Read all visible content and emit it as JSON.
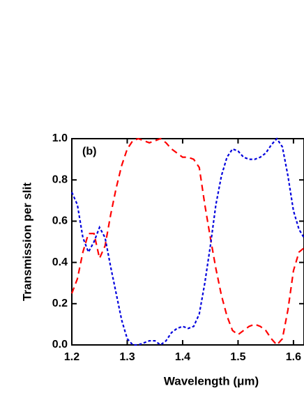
{
  "chart_data": {
    "type": "line",
    "annotation": "(b)",
    "xlabel": "Wavelength (μm)",
    "ylabel": "Transmission per slit",
    "x": [
      1.2,
      1.21,
      1.22,
      1.23,
      1.24,
      1.25,
      1.26,
      1.27,
      1.28,
      1.29,
      1.3,
      1.31,
      1.32,
      1.33,
      1.34,
      1.35,
      1.36,
      1.37,
      1.38,
      1.39,
      1.4,
      1.41,
      1.42,
      1.43,
      1.44,
      1.45,
      1.46,
      1.47,
      1.48,
      1.49,
      1.5,
      1.51,
      1.52,
      1.53,
      1.54,
      1.55,
      1.56,
      1.57,
      1.58,
      1.59,
      1.6,
      1.61,
      1.619
    ],
    "series": [
      {
        "color": "#ff0000",
        "dash": "9,6",
        "values": [
          0.25,
          0.32,
          0.45,
          0.54,
          0.54,
          0.42,
          0.48,
          0.63,
          0.76,
          0.87,
          0.95,
          0.99,
          1.0,
          0.99,
          0.98,
          0.99,
          1.0,
          0.98,
          0.95,
          0.93,
          0.91,
          0.91,
          0.9,
          0.86,
          0.68,
          0.52,
          0.37,
          0.24,
          0.14,
          0.07,
          0.05,
          0.07,
          0.09,
          0.1,
          0.09,
          0.07,
          0.03,
          0.0,
          0.03,
          0.17,
          0.36,
          0.45,
          0.47
        ]
      },
      {
        "color": "#0000dd",
        "dash": "4,3",
        "values": [
          0.74,
          0.68,
          0.52,
          0.45,
          0.5,
          0.57,
          0.52,
          0.38,
          0.25,
          0.12,
          0.03,
          0.0,
          0.0,
          0.01,
          0.02,
          0.02,
          0.0,
          0.02,
          0.06,
          0.08,
          0.09,
          0.08,
          0.09,
          0.15,
          0.3,
          0.48,
          0.68,
          0.82,
          0.91,
          0.95,
          0.94,
          0.91,
          0.9,
          0.9,
          0.91,
          0.93,
          0.97,
          1.0,
          0.96,
          0.82,
          0.65,
          0.56,
          0.52
        ]
      }
    ],
    "xlim": [
      1.2,
      1.619
    ],
    "ylim": [
      0,
      1
    ],
    "xticks": [
      1.2,
      1.3,
      1.4,
      1.5,
      1.6
    ],
    "yticks": [
      {
        "value": 0,
        "label": "0.0"
      },
      0.2,
      0.4,
      0.6,
      0.8,
      {
        "value": 1,
        "label": "1.0"
      }
    ]
  }
}
